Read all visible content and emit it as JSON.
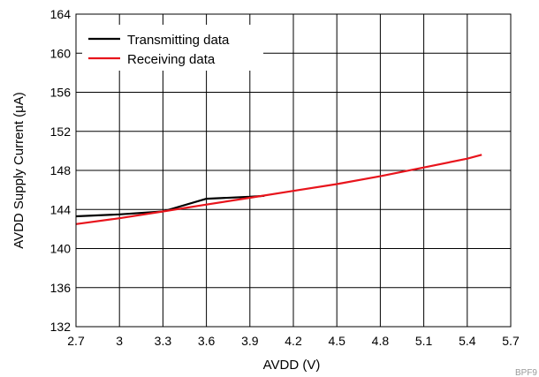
{
  "chart_data": {
    "type": "line",
    "title": "",
    "xlabel": "AVDD (V)",
    "ylabel": "AVDD Supply Current (μA)",
    "xlim": [
      2.7,
      5.7
    ],
    "ylim": [
      132,
      164
    ],
    "x_ticks": [
      "2.7",
      "3",
      "3.3",
      "3.6",
      "3.9",
      "4.2",
      "4.5",
      "4.8",
      "5.1",
      "5.4",
      "5.7"
    ],
    "y_ticks": [
      "132",
      "136",
      "140",
      "144",
      "148",
      "152",
      "156",
      "160",
      "164"
    ],
    "grid": true,
    "legend_position": "top-left",
    "series": [
      {
        "name": "Transmitting data",
        "color": "#000000",
        "x": [
          2.7,
          3.0,
          3.3,
          3.6,
          3.9,
          4.0
        ],
        "y": [
          143.3,
          143.5,
          143.8,
          145.1,
          145.3,
          145.4
        ]
      },
      {
        "name": "Receiving data",
        "color": "#e8141c",
        "x": [
          2.7,
          3.0,
          3.3,
          3.6,
          3.9,
          4.2,
          4.5,
          4.8,
          5.1,
          5.4,
          5.5
        ],
        "y": [
          142.5,
          143.1,
          143.8,
          144.5,
          145.2,
          145.9,
          146.6,
          147.4,
          148.3,
          149.2,
          149.6
        ]
      }
    ],
    "figure_code": "BPF9"
  }
}
